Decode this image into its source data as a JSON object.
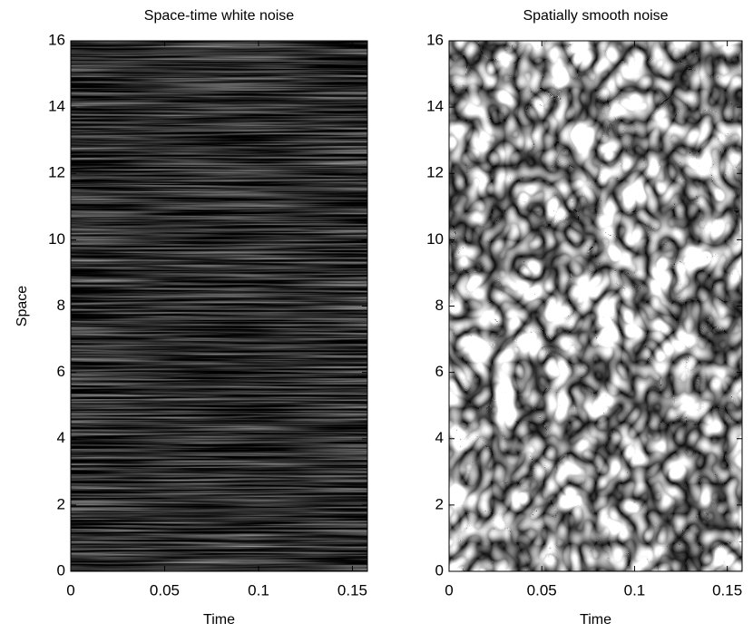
{
  "chart_data": [
    {
      "type": "heatmap",
      "title": "Space-time white noise",
      "x_label": "Time",
      "y_label": "Space",
      "xlim": [
        0,
        0.158
      ],
      "xticks": [
        0,
        0.05,
        0.1,
        0.15
      ],
      "ylim": [
        0,
        16
      ],
      "yticks": [
        0,
        2,
        4,
        6,
        8,
        10,
        12,
        14,
        16
      ]
    },
    {
      "type": "heatmap",
      "title": "Spatially smooth noise",
      "x_label": "Time",
      "xlim": [
        0,
        0.158
      ],
      "xticks": [
        0,
        0.05,
        0.1,
        0.15
      ],
      "ylim": [
        0,
        16
      ],
      "yticks": [
        0,
        2,
        4,
        6,
        8,
        10,
        12,
        14,
        16
      ]
    }
  ]
}
